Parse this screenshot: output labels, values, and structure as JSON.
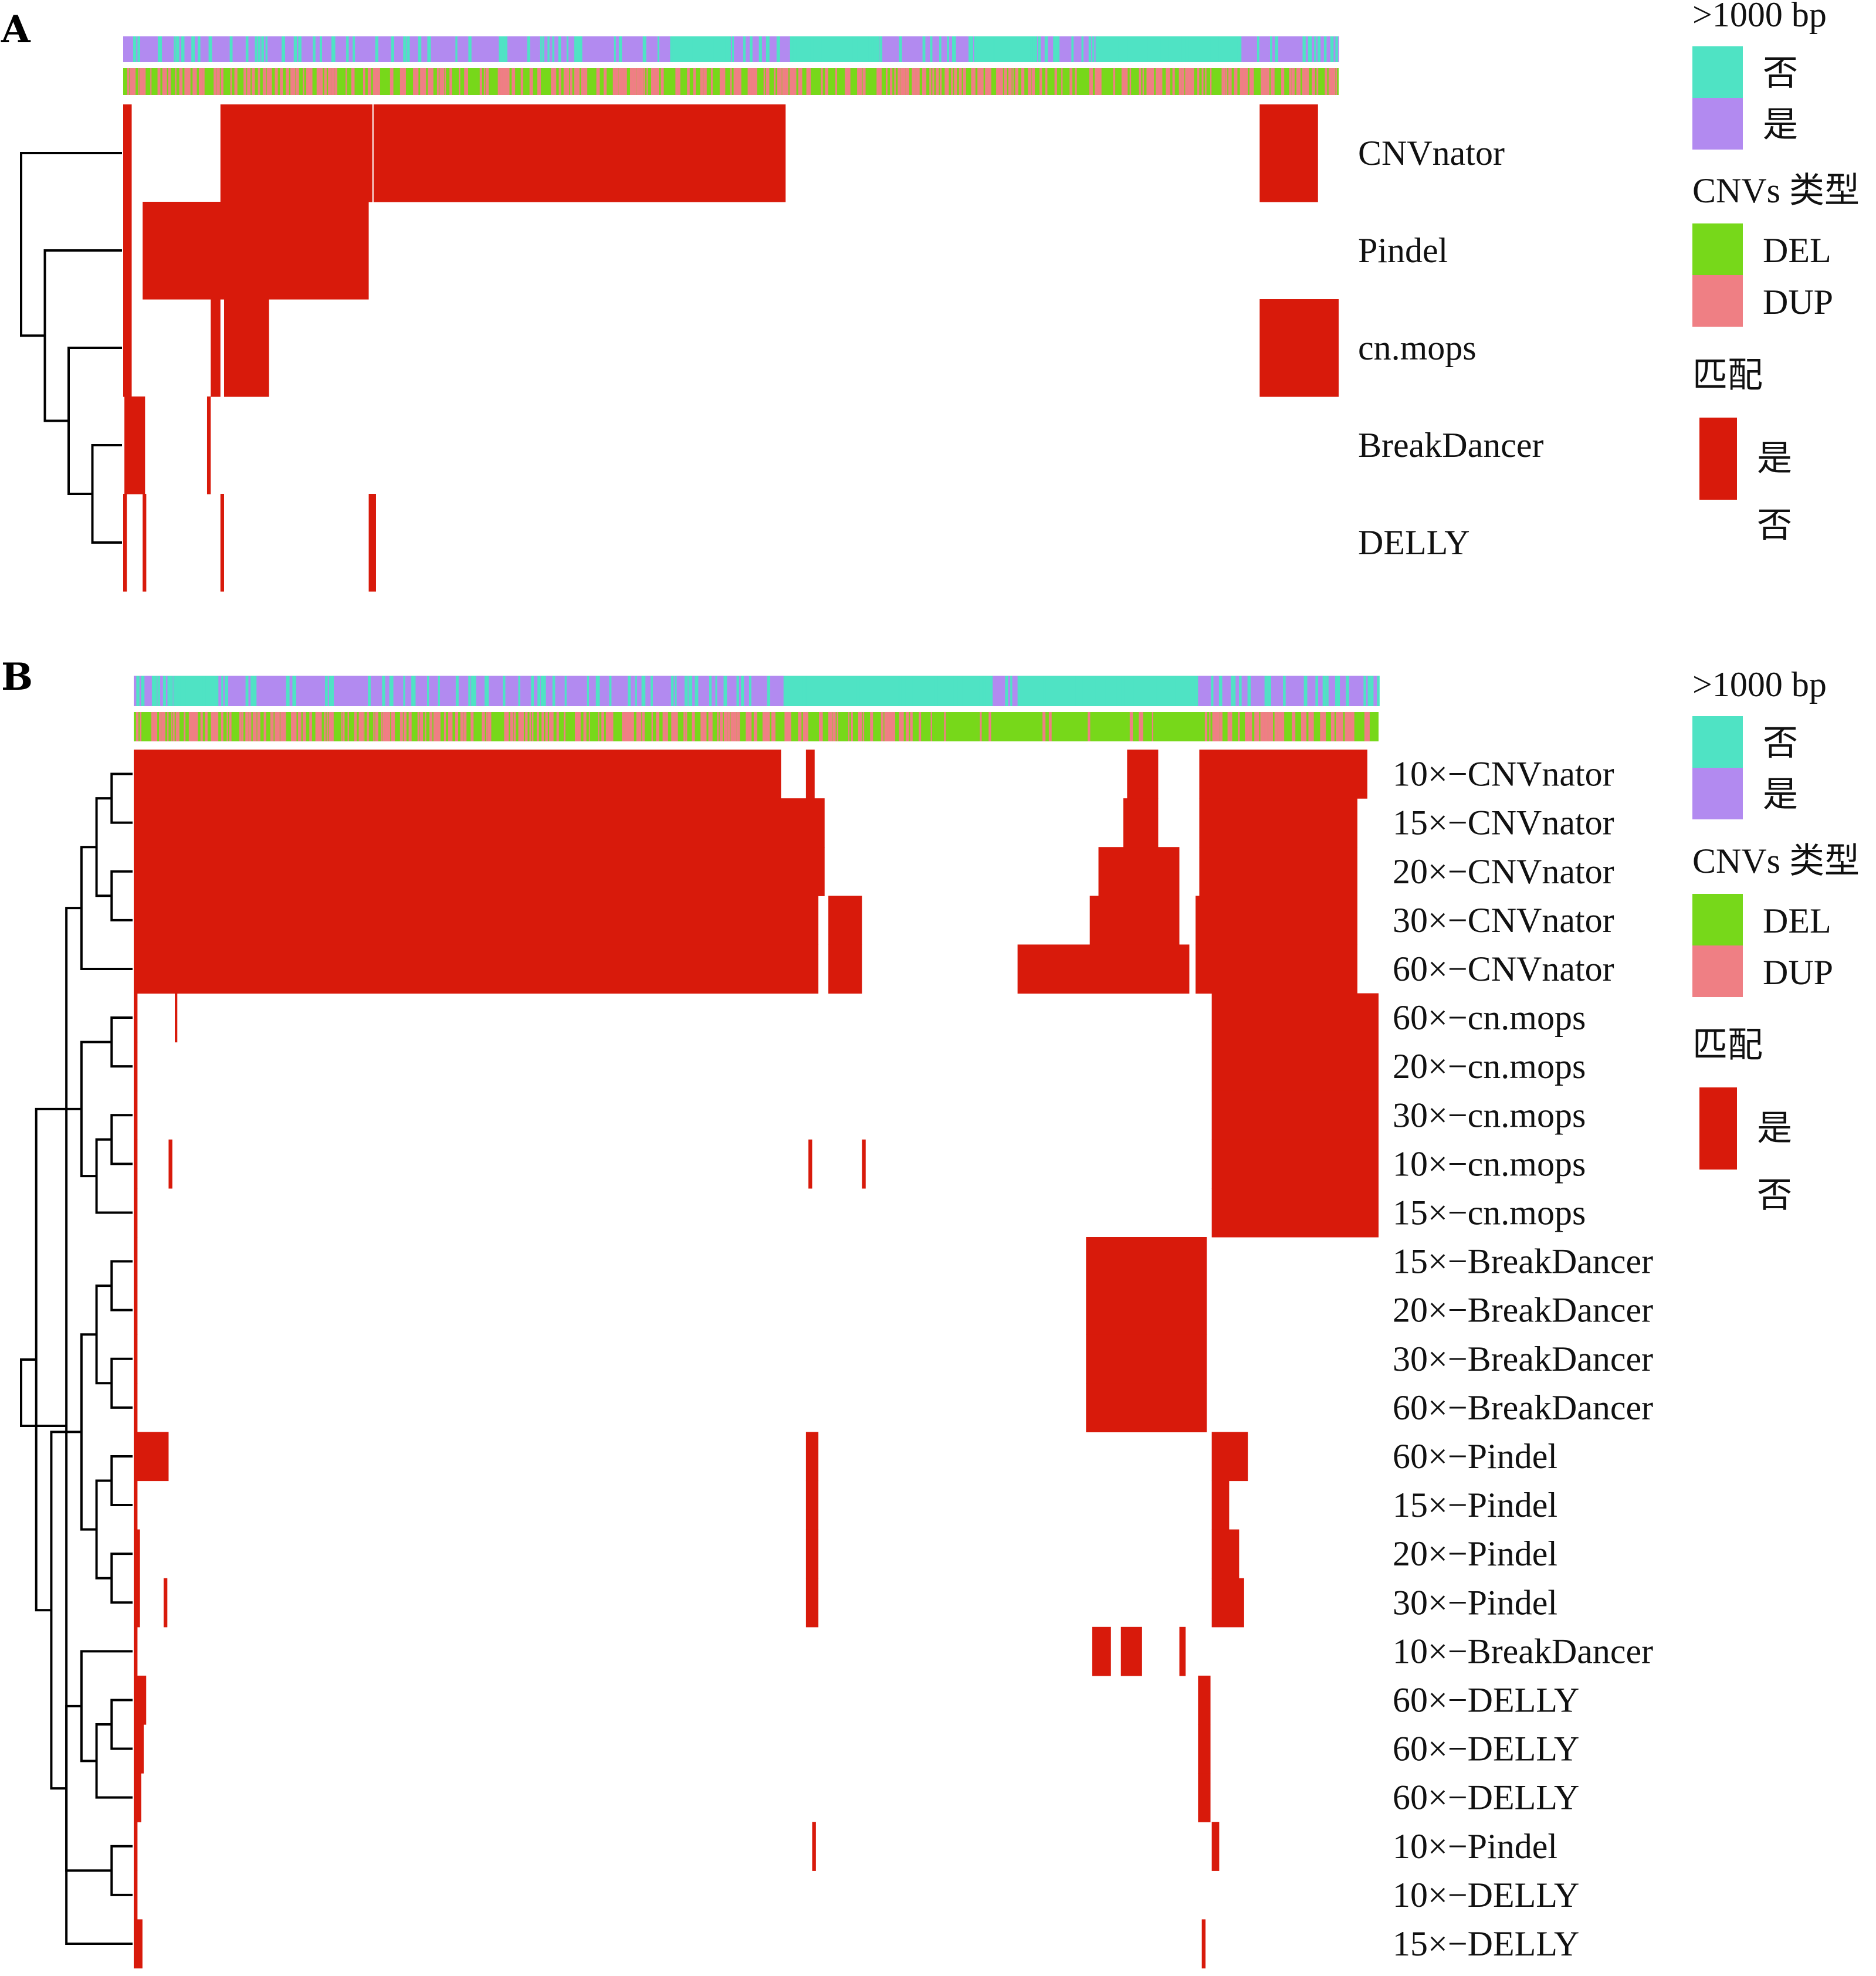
{
  "colors": {
    "size_no": "#4fe3c4",
    "size_yes": "#b28af0",
    "del": "#77d81a",
    "dup": "#ef7f84",
    "match": "#d81a0b",
    "no_match": "#ffffff",
    "tree": "#000000"
  },
  "chart_data": [
    {
      "type": "heatmap",
      "panel": "A",
      "x_categories_count": 1000,
      "rows": [
        "CNVnator",
        "Pindel",
        "cn.mops",
        "BreakDancer",
        "DELLY"
      ],
      "annotation_tracks": [
        {
          "name": ">1000 bp",
          "legend": [
            "否",
            "是"
          ]
        },
        {
          "name": "CNVs 类型",
          "legend": [
            "DEL",
            "DUP"
          ]
        }
      ],
      "size_track_runs": [
        {
          "from": 0.0,
          "to": 0.45,
          "value": "是"
        },
        {
          "from": 0.45,
          "to": 0.5,
          "value": "否"
        },
        {
          "from": 0.5,
          "to": 0.55,
          "value": "是"
        },
        {
          "from": 0.55,
          "to": 0.62,
          "value": "否"
        },
        {
          "from": 0.62,
          "to": 0.7,
          "value": "是"
        },
        {
          "from": 0.7,
          "to": 0.75,
          "value": "否"
        },
        {
          "from": 0.75,
          "to": 0.8,
          "value": "是"
        },
        {
          "from": 0.8,
          "to": 0.92,
          "value": "否"
        },
        {
          "from": 0.92,
          "to": 1.0,
          "value": "是"
        }
      ],
      "matrix_blocks": [
        {
          "row": 0,
          "from": 0.0,
          "to": 0.007
        },
        {
          "row": 0,
          "from": 0.08,
          "to": 0.205
        },
        {
          "row": 0,
          "from": 0.206,
          "to": 0.545
        },
        {
          "row": 0,
          "from": 0.935,
          "to": 0.983
        },
        {
          "row": 1,
          "from": 0.0,
          "to": 0.007
        },
        {
          "row": 1,
          "from": 0.016,
          "to": 0.202
        },
        {
          "row": 2,
          "from": 0.0,
          "to": 0.007
        },
        {
          "row": 2,
          "from": 0.072,
          "to": 0.08
        },
        {
          "row": 2,
          "from": 0.083,
          "to": 0.12
        },
        {
          "row": 2,
          "from": 0.935,
          "to": 1.0
        },
        {
          "row": 3,
          "from": 0.001,
          "to": 0.018
        },
        {
          "row": 3,
          "from": 0.069,
          "to": 0.072
        },
        {
          "row": 4,
          "from": 0.0,
          "to": 0.003
        },
        {
          "row": 4,
          "from": 0.016,
          "to": 0.019
        },
        {
          "row": 4,
          "from": 0.08,
          "to": 0.083
        },
        {
          "row": 4,
          "from": 0.202,
          "to": 0.208
        }
      ],
      "dendrogram": [
        [
          3,
          4
        ],
        [
          2,
          5
        ],
        [
          1,
          6
        ],
        [
          0,
          7
        ]
      ],
      "legend": {
        "size_title": ">1000 bp",
        "size_no": "否",
        "size_yes": "是",
        "type_title": "CNVs 类型",
        "type_del": "DEL",
        "type_dup": "DUP",
        "match_title": "匹配",
        "match_yes": "是",
        "match_no": "否"
      }
    },
    {
      "type": "heatmap",
      "panel": "B",
      "x_categories_count": 1000,
      "rows": [
        "10×−CNVnator",
        "15×−CNVnator",
        "20×−CNVnator",
        "30×−CNVnator",
        "60×−CNVnator",
        "60×−cn.mops",
        "20×−cn.mops",
        "30×−cn.mops",
        "10×−cn.mops",
        "15×−cn.mops",
        "15×−BreakDancer",
        "20×−BreakDancer",
        "30×−BreakDancer",
        "60×−BreakDancer",
        "60×−Pindel",
        "15×−Pindel",
        "20×−Pindel",
        "30×−Pindel",
        "10×−BreakDancer",
        "60×−DELLY",
        "60×−DELLY",
        "60×−DELLY",
        "10×−Pindel",
        "10×−DELLY",
        "15×−DELLY"
      ],
      "annotation_tracks": [
        {
          "name": ">1000 bp",
          "legend": [
            "否",
            "是"
          ]
        },
        {
          "name": "CNVs 类型",
          "legend": [
            "DEL",
            "DUP"
          ]
        }
      ],
      "size_track_runs": [
        {
          "from": 0.0,
          "to": 0.035,
          "value": "是"
        },
        {
          "from": 0.035,
          "to": 0.068,
          "value": "否"
        },
        {
          "from": 0.068,
          "to": 0.522,
          "value": "是"
        },
        {
          "from": 0.522,
          "to": 0.585,
          "value": "否"
        },
        {
          "from": 0.585,
          "to": 0.69,
          "value": "否"
        },
        {
          "from": 0.69,
          "to": 0.71,
          "value": "是"
        },
        {
          "from": 0.71,
          "to": 0.855,
          "value": "否"
        },
        {
          "from": 0.855,
          "to": 0.91,
          "value": "是"
        },
        {
          "from": 0.91,
          "to": 1.0,
          "value": "是"
        }
      ],
      "matrix_blocks": [
        {
          "row": 0,
          "from": 0.0,
          "to": 0.52
        },
        {
          "row": 0,
          "from": 0.54,
          "to": 0.547
        },
        {
          "row": 0,
          "from": 0.798,
          "to": 0.823
        },
        {
          "row": 0,
          "from": 0.856,
          "to": 0.991
        },
        {
          "row": 1,
          "from": 0.0,
          "to": 0.555
        },
        {
          "row": 1,
          "from": 0.795,
          "to": 0.823
        },
        {
          "row": 1,
          "from": 0.856,
          "to": 0.983
        },
        {
          "row": 2,
          "from": 0.0,
          "to": 0.555
        },
        {
          "row": 2,
          "from": 0.775,
          "to": 0.84
        },
        {
          "row": 2,
          "from": 0.856,
          "to": 0.983
        },
        {
          "row": 3,
          "from": 0.0,
          "to": 0.55
        },
        {
          "row": 3,
          "from": 0.558,
          "to": 0.585
        },
        {
          "row": 3,
          "from": 0.768,
          "to": 0.84
        },
        {
          "row": 3,
          "from": 0.853,
          "to": 0.983
        },
        {
          "row": 4,
          "from": 0.0,
          "to": 0.55
        },
        {
          "row": 4,
          "from": 0.558,
          "to": 0.585
        },
        {
          "row": 4,
          "from": 0.71,
          "to": 0.848
        },
        {
          "row": 4,
          "from": 0.853,
          "to": 0.983
        },
        {
          "row": 5,
          "from": 0.0,
          "to": 0.003
        },
        {
          "row": 5,
          "from": 0.033,
          "to": 0.035
        },
        {
          "row": 5,
          "from": 0.866,
          "to": 1.0
        },
        {
          "row": 6,
          "from": 0.0,
          "to": 0.003
        },
        {
          "row": 6,
          "from": 0.866,
          "to": 1.0
        },
        {
          "row": 7,
          "from": 0.0,
          "to": 0.003
        },
        {
          "row": 7,
          "from": 0.866,
          "to": 1.0
        },
        {
          "row": 8,
          "from": 0.0,
          "to": 0.003
        },
        {
          "row": 8,
          "from": 0.028,
          "to": 0.031
        },
        {
          "row": 8,
          "from": 0.542,
          "to": 0.545
        },
        {
          "row": 8,
          "from": 0.585,
          "to": 0.588
        },
        {
          "row": 8,
          "from": 0.866,
          "to": 1.0
        },
        {
          "row": 9,
          "from": 0.0,
          "to": 0.003
        },
        {
          "row": 9,
          "from": 0.866,
          "to": 1.0
        },
        {
          "row": 10,
          "from": 0.0,
          "to": 0.003
        },
        {
          "row": 10,
          "from": 0.765,
          "to": 0.862
        },
        {
          "row": 11,
          "from": 0.0,
          "to": 0.003
        },
        {
          "row": 11,
          "from": 0.765,
          "to": 0.862
        },
        {
          "row": 12,
          "from": 0.0,
          "to": 0.003
        },
        {
          "row": 12,
          "from": 0.765,
          "to": 0.862
        },
        {
          "row": 13,
          "from": 0.0,
          "to": 0.003
        },
        {
          "row": 13,
          "from": 0.765,
          "to": 0.862
        },
        {
          "row": 14,
          "from": 0.0,
          "to": 0.028
        },
        {
          "row": 14,
          "from": 0.54,
          "to": 0.55
        },
        {
          "row": 14,
          "from": 0.866,
          "to": 0.895
        },
        {
          "row": 15,
          "from": 0.0,
          "to": 0.003
        },
        {
          "row": 15,
          "from": 0.54,
          "to": 0.55
        },
        {
          "row": 15,
          "from": 0.866,
          "to": 0.88
        },
        {
          "row": 16,
          "from": 0.0,
          "to": 0.005
        },
        {
          "row": 16,
          "from": 0.54,
          "to": 0.55
        },
        {
          "row": 16,
          "from": 0.866,
          "to": 0.888
        },
        {
          "row": 17,
          "from": 0.0,
          "to": 0.005
        },
        {
          "row": 17,
          "from": 0.024,
          "to": 0.027
        },
        {
          "row": 17,
          "from": 0.54,
          "to": 0.55
        },
        {
          "row": 17,
          "from": 0.866,
          "to": 0.892
        },
        {
          "row": 18,
          "from": 0.0,
          "to": 0.003
        },
        {
          "row": 18,
          "from": 0.77,
          "to": 0.785
        },
        {
          "row": 18,
          "from": 0.793,
          "to": 0.81
        },
        {
          "row": 18,
          "from": 0.84,
          "to": 0.845
        },
        {
          "row": 19,
          "from": 0.0,
          "to": 0.01
        },
        {
          "row": 19,
          "from": 0.855,
          "to": 0.865
        },
        {
          "row": 20,
          "from": 0.0,
          "to": 0.008
        },
        {
          "row": 20,
          "from": 0.855,
          "to": 0.865
        },
        {
          "row": 21,
          "from": 0.0,
          "to": 0.006
        },
        {
          "row": 21,
          "from": 0.855,
          "to": 0.865
        },
        {
          "row": 22,
          "from": 0.0,
          "to": 0.003
        },
        {
          "row": 22,
          "from": 0.545,
          "to": 0.548
        },
        {
          "row": 22,
          "from": 0.866,
          "to": 0.872
        },
        {
          "row": 23,
          "from": 0.0,
          "to": 0.003
        },
        {
          "row": 24,
          "from": 0.0,
          "to": 0.007
        },
        {
          "row": 24,
          "from": 0.858,
          "to": 0.861
        }
      ],
      "dendrogram": [
        [
          0,
          1
        ],
        [
          2,
          3
        ],
        [
          25,
          26
        ],
        [
          4,
          27
        ],
        [
          28,
          24
        ],
        [
          5,
          6
        ],
        [
          7,
          8
        ],
        [
          9,
          31
        ],
        [
          30,
          32
        ],
        [
          10,
          11
        ],
        [
          12,
          13
        ],
        [
          34,
          35
        ],
        [
          14,
          15
        ],
        [
          16,
          17
        ],
        [
          37,
          38
        ],
        [
          36,
          39
        ],
        [
          19,
          20
        ],
        [
          21,
          41
        ],
        [
          18,
          42
        ],
        [
          22,
          23
        ],
        [
          43,
          44
        ],
        [
          40,
          45
        ],
        [
          33,
          46
        ],
        [
          29,
          47
        ]
      ],
      "legend": {
        "size_title": ">1000 bp",
        "size_no": "否",
        "size_yes": "是",
        "type_title": "CNVs 类型",
        "type_del": "DEL",
        "type_dup": "DUP",
        "match_title": "匹配",
        "match_yes": "是",
        "match_no": "否"
      }
    }
  ]
}
